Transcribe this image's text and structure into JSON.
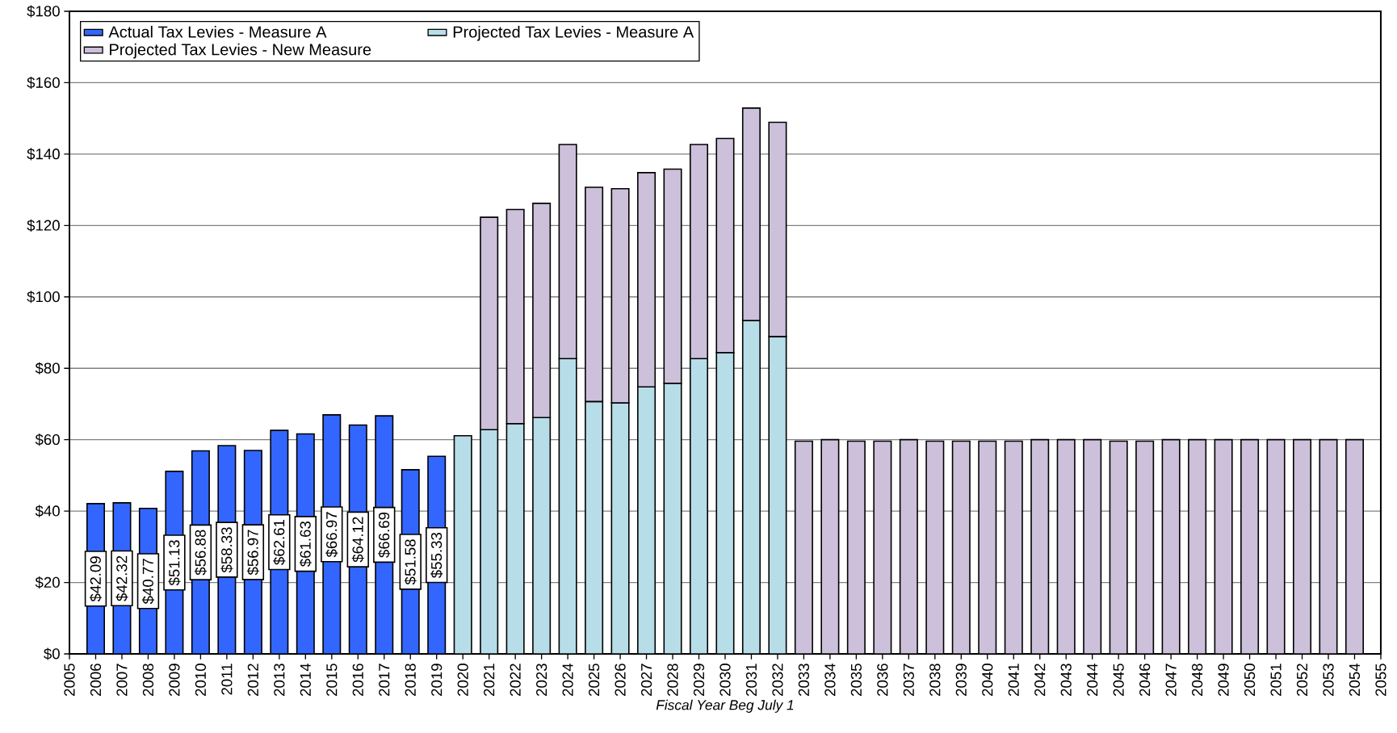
{
  "chart_data": {
    "type": "bar",
    "stacked": true,
    "xlabel": "Fiscal Year Beg July 1",
    "x": [
      2006,
      2007,
      2008,
      2009,
      2010,
      2011,
      2012,
      2013,
      2014,
      2015,
      2016,
      2017,
      2018,
      2019,
      2020,
      2021,
      2022,
      2023,
      2024,
      2025,
      2026,
      2027,
      2028,
      2029,
      2030,
      2031,
      2032,
      2033,
      2034,
      2035,
      2036,
      2037,
      2038,
      2039,
      2040,
      2041,
      2042,
      2043,
      2044,
      2045,
      2046,
      2047,
      2048,
      2049,
      2050,
      2051,
      2052,
      2053,
      2054
    ],
    "xlim": [
      2005,
      2055
    ],
    "xticks": [
      2005,
      2006,
      2007,
      2008,
      2009,
      2010,
      2011,
      2012,
      2013,
      2014,
      2015,
      2016,
      2017,
      2018,
      2019,
      2020,
      2021,
      2022,
      2023,
      2024,
      2025,
      2026,
      2027,
      2028,
      2029,
      2030,
      2031,
      2032,
      2033,
      2034,
      2035,
      2036,
      2037,
      2038,
      2039,
      2040,
      2041,
      2042,
      2043,
      2044,
      2045,
      2046,
      2047,
      2048,
      2049,
      2050,
      2051,
      2052,
      2053,
      2054,
      2055
    ],
    "ylim": [
      0,
      180
    ],
    "yticks": [
      {
        "value": 0,
        "label": "$0"
      },
      {
        "value": 20,
        "label": "$20"
      },
      {
        "value": 40,
        "label": "$40"
      },
      {
        "value": 60,
        "label": "$60"
      },
      {
        "value": 80,
        "label": "$80"
      },
      {
        "value": 100,
        "label": "$100"
      },
      {
        "value": 120,
        "label": "$120"
      },
      {
        "value": 140,
        "label": "$140"
      },
      {
        "value": 160,
        "label": "$160"
      },
      {
        "value": 180,
        "label": "$180"
      }
    ],
    "grid": "y",
    "legend": "top left",
    "series": [
      {
        "name": "Actual Tax Levies - Measure A",
        "color": "#3366ff",
        "values": [
          42.09,
          42.32,
          40.77,
          51.13,
          56.88,
          58.33,
          56.97,
          62.61,
          61.63,
          66.97,
          64.12,
          66.69,
          51.58,
          55.33,
          null,
          null,
          null,
          null,
          null,
          null,
          null,
          null,
          null,
          null,
          null,
          null,
          null,
          null,
          null,
          null,
          null,
          null,
          null,
          null,
          null,
          null,
          null,
          null,
          null,
          null,
          null,
          null,
          null,
          null,
          null,
          null,
          null,
          null,
          null
        ],
        "value_labels": [
          "$42.09",
          "$42.32",
          "$40.77",
          "$51.13",
          "$56.88",
          "$58.33",
          "$56.97",
          "$62.61",
          "$61.63",
          "$66.97",
          "$64.12",
          "$66.69",
          "$51.58",
          "$55.33",
          null,
          null,
          null,
          null,
          null,
          null,
          null,
          null,
          null,
          null,
          null,
          null,
          null,
          null,
          null,
          null,
          null,
          null,
          null,
          null,
          null,
          null,
          null,
          null,
          null,
          null,
          null,
          null,
          null,
          null,
          null,
          null,
          null,
          null,
          null
        ]
      },
      {
        "name": "Projected Tax Levies - Measure A",
        "color": "#b7dde8",
        "values": [
          null,
          null,
          null,
          null,
          null,
          null,
          null,
          null,
          null,
          null,
          null,
          null,
          null,
          null,
          61.1,
          62.8,
          64.5,
          66.2,
          82.7,
          70.7,
          70.3,
          74.8,
          75.8,
          82.7,
          84.4,
          93.4,
          88.9,
          null,
          null,
          null,
          null,
          null,
          null,
          null,
          null,
          null,
          null,
          null,
          null,
          null,
          null,
          null,
          null,
          null,
          null,
          null,
          null,
          null,
          null
        ]
      },
      {
        "name": "Projected Tax Levies - New Measure",
        "color": "#ccc0da",
        "values": [
          null,
          null,
          null,
          null,
          null,
          null,
          null,
          null,
          null,
          null,
          null,
          null,
          null,
          null,
          null,
          59.5,
          60,
          60,
          60,
          60,
          60,
          60,
          60,
          60,
          60,
          59.5,
          60,
          59.6,
          60,
          59.6,
          59.6,
          60,
          59.6,
          59.6,
          59.6,
          59.6,
          60,
          60,
          60,
          59.6,
          59.6,
          60,
          60,
          60,
          60,
          60,
          60,
          60,
          60
        ]
      }
    ]
  }
}
